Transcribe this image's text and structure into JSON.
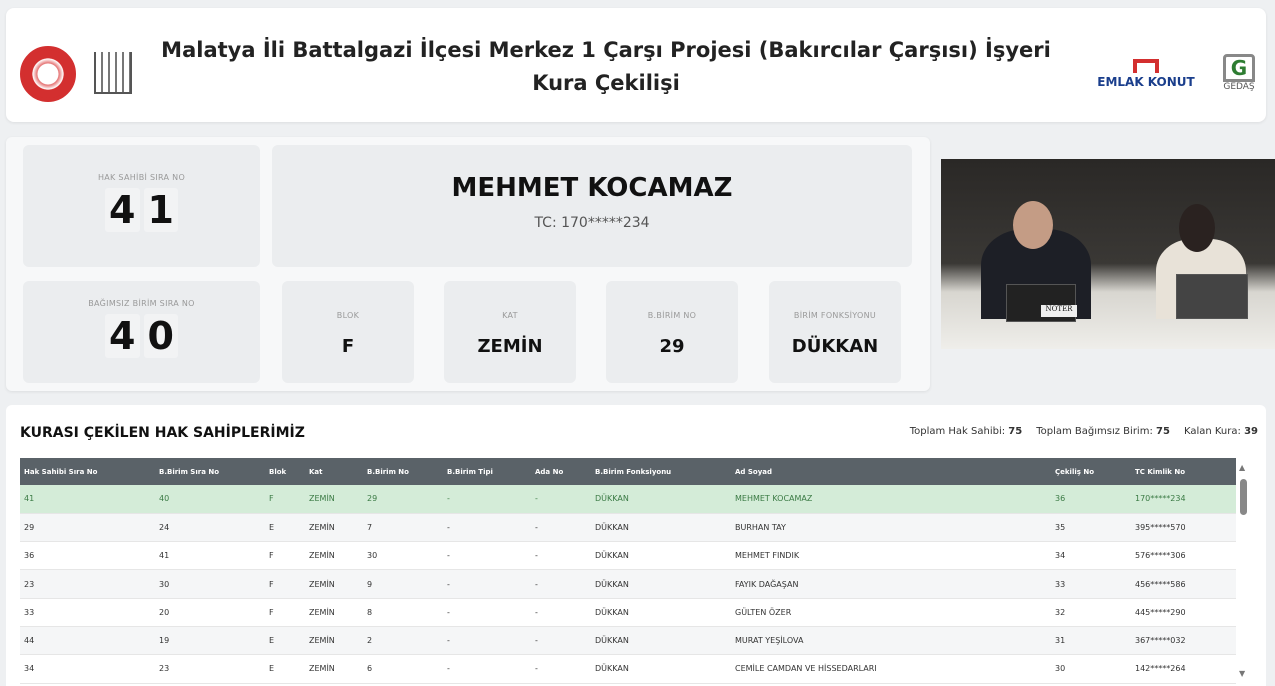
{
  "header": {
    "title": "Malatya İli Battalgazi İlçesi Merkez 1 Çarşı Projesi (Bakırcılar Çarşısı) İşyeri Kura Çekilişi",
    "logos": {
      "emlak": "EMLAK KONUT",
      "gedas": "GEDAŞ"
    }
  },
  "current": {
    "hak_sahibi_label": "HAK SAHİBİ SIRA NO",
    "hak_sahibi_digits": [
      "4",
      "1"
    ],
    "name": "MEHMET KOCAMAZ",
    "tc": "TC: 170*****234",
    "birim_sira_label": "BAĞIMSIZ BİRİM SIRA NO",
    "birim_sira_digits": [
      "4",
      "0"
    ],
    "blok_label": "BLOK",
    "blok": "F",
    "kat_label": "KAT",
    "kat": "ZEMİN",
    "birim_no_label": "B.BİRİM NO",
    "birim_no": "29",
    "fonksiyon_label": "BİRİM FONKSİYONU",
    "fonksiyon": "DÜKKAN"
  },
  "list": {
    "title": "KURASI ÇEKİLEN HAK SAHİPLERİMİZ",
    "stats": [
      {
        "label": "Toplam Hak Sahibi:",
        "value": "75"
      },
      {
        "label": "Toplam Bağımsız Birim:",
        "value": "75"
      },
      {
        "label": "Kalan Kura:",
        "value": "39"
      }
    ],
    "columns": [
      "Hak Sahibi Sıra No",
      "B.Birim Sıra No",
      "Blok",
      "Kat",
      "B.Birim No",
      "B.Birim Tipi",
      "Ada No",
      "B.Birim Fonksiyonu",
      "Ad Soyad",
      "Çekiliş No",
      "TC Kimlik No"
    ],
    "rows": [
      [
        "41",
        "40",
        "F",
        "ZEMİN",
        "29",
        "-",
        "-",
        "DÜKKAN",
        "MEHMET KOCAMAZ",
        "36",
        "170*****234"
      ],
      [
        "29",
        "24",
        "E",
        "ZEMİN",
        "7",
        "-",
        "-",
        "DÜKKAN",
        "BURHAN TAY",
        "35",
        "395*****570"
      ],
      [
        "36",
        "41",
        "F",
        "ZEMİN",
        "30",
        "-",
        "-",
        "DÜKKAN",
        "MEHMET FINDIK",
        "34",
        "576*****306"
      ],
      [
        "23",
        "30",
        "F",
        "ZEMİN",
        "9",
        "-",
        "-",
        "DÜKKAN",
        "FAYIK DAĞAŞAN",
        "33",
        "456*****586"
      ],
      [
        "33",
        "20",
        "F",
        "ZEMİN",
        "8",
        "-",
        "-",
        "DÜKKAN",
        "GÜLTEN ÖZER",
        "32",
        "445*****290"
      ],
      [
        "44",
        "19",
        "E",
        "ZEMİN",
        "2",
        "-",
        "-",
        "DÜKKAN",
        "MURAT YEŞİLOVA",
        "31",
        "367*****032"
      ],
      [
        "34",
        "23",
        "E",
        "ZEMİN",
        "6",
        "-",
        "-",
        "DÜKKAN",
        "CEMİLE CAMDAN VE HİSSEDARLARI",
        "30",
        "142*****264"
      ]
    ]
  },
  "video": {
    "nameplate": "NOTER"
  },
  "colors": {
    "highlight_row": "#d4ecd8",
    "table_header": "#5a6268"
  }
}
